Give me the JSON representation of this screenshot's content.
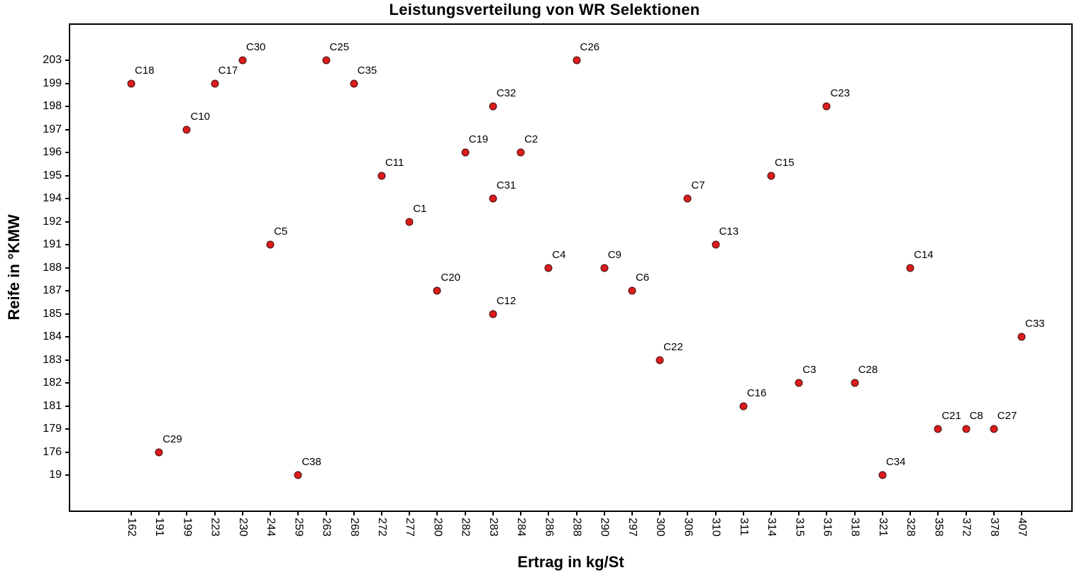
{
  "chart_data": {
    "type": "scatter",
    "title": "Leistungsverteilung von WR Selektionen",
    "xlabel": "Ertrag in kg/St",
    "ylabel": "Reife in °KMW",
    "x_scale": "categorical",
    "y_scale": "categorical",
    "grid": false,
    "legend_position": "none",
    "x_ticks": [
      "162",
      "191",
      "199",
      "223",
      "230",
      "244",
      "259",
      "263",
      "268",
      "272",
      "277",
      "280",
      "282",
      "283",
      "284",
      "286",
      "288",
      "290",
      "297",
      "300",
      "306",
      "310",
      "311",
      "314",
      "315",
      "316",
      "318",
      "321",
      "328",
      "358",
      "372",
      "378",
      "407"
    ],
    "y_ticks": [
      "203",
      "199",
      "198",
      "197",
      "196",
      "195",
      "194",
      "192",
      "191",
      "188",
      "187",
      "185",
      "184",
      "183",
      "182",
      "181",
      "179",
      "176",
      "19"
    ],
    "points": [
      {
        "label": "C18",
        "x": "162",
        "y": "199"
      },
      {
        "label": "C29",
        "x": "191",
        "y": "176"
      },
      {
        "label": "C10",
        "x": "199",
        "y": "197"
      },
      {
        "label": "C17",
        "x": "223",
        "y": "199"
      },
      {
        "label": "C30",
        "x": "230",
        "y": "203"
      },
      {
        "label": "C5",
        "x": "244",
        "y": "191"
      },
      {
        "label": "C38",
        "x": "259",
        "y": "19"
      },
      {
        "label": "C25",
        "x": "263",
        "y": "203"
      },
      {
        "label": "C35",
        "x": "268",
        "y": "199"
      },
      {
        "label": "C11",
        "x": "272",
        "y": "195"
      },
      {
        "label": "C1",
        "x": "277",
        "y": "192"
      },
      {
        "label": "C20",
        "x": "280",
        "y": "187"
      },
      {
        "label": "C19",
        "x": "282",
        "y": "196"
      },
      {
        "label": "C32",
        "x": "283",
        "y": "198"
      },
      {
        "label": "C31",
        "x": "283",
        "y": "194"
      },
      {
        "label": "C12",
        "x": "283",
        "y": "185"
      },
      {
        "label": "C2",
        "x": "284",
        "y": "196"
      },
      {
        "label": "C4",
        "x": "286",
        "y": "188"
      },
      {
        "label": "C26",
        "x": "288",
        "y": "203"
      },
      {
        "label": "C9",
        "x": "290",
        "y": "188"
      },
      {
        "label": "C6",
        "x": "297",
        "y": "187"
      },
      {
        "label": "C22",
        "x": "300",
        "y": "183"
      },
      {
        "label": "C7",
        "x": "306",
        "y": "194"
      },
      {
        "label": "C13",
        "x": "310",
        "y": "191"
      },
      {
        "label": "C16",
        "x": "311",
        "y": "181"
      },
      {
        "label": "C15",
        "x": "314",
        "y": "195"
      },
      {
        "label": "C3",
        "x": "315",
        "y": "182"
      },
      {
        "label": "C23",
        "x": "316",
        "y": "198"
      },
      {
        "label": "C28",
        "x": "318",
        "y": "182"
      },
      {
        "label": "C34",
        "x": "321",
        "y": "19"
      },
      {
        "label": "C14",
        "x": "328",
        "y": "188"
      },
      {
        "label": "C21",
        "x": "358",
        "y": "179"
      },
      {
        "label": "C8",
        "x": "372",
        "y": "179"
      },
      {
        "label": "C27",
        "x": "378",
        "y": "179"
      },
      {
        "label": "C33",
        "x": "407",
        "y": "184"
      }
    ],
    "colors": {
      "point_fill": "#dd1c1c",
      "point_stroke": "#3b0f0f",
      "axis": "#000000",
      "text": "#000000",
      "background": "#ffffff"
    }
  }
}
